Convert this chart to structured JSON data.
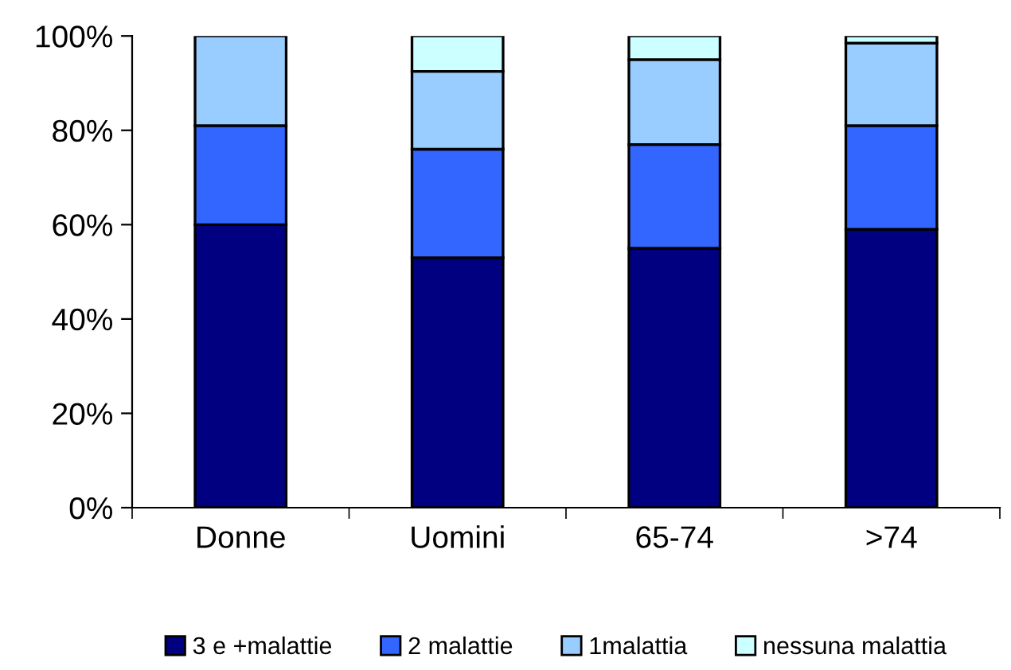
{
  "chart_data": {
    "type": "bar",
    "stacked": true,
    "categories": [
      "Donne",
      "Uomini",
      "65-74",
      ">74"
    ],
    "series": [
      {
        "name": "3 e +malattie",
        "color": "#000080",
        "values": [
          60,
          53,
          55,
          59
        ]
      },
      {
        "name": "2 malattie",
        "color": "#3366ff",
        "values": [
          21,
          23,
          22,
          22
        ]
      },
      {
        "name": "1malattia",
        "color": "#99ccff",
        "values": [
          19,
          16.5,
          18,
          17.5
        ]
      },
      {
        "name": "nessuna malattia",
        "color": "#ccffff",
        "values": [
          null,
          7.5,
          5,
          1.5
        ]
      }
    ],
    "ylim": [
      0,
      100
    ],
    "yticks": [
      {
        "value": 0,
        "label": "0%"
      },
      {
        "value": 20,
        "label": "20%"
      },
      {
        "value": 40,
        "label": "40%"
      },
      {
        "value": 60,
        "label": "60%"
      },
      {
        "value": 80,
        "label": "80%"
      },
      {
        "value": 100,
        "label": "100%"
      }
    ],
    "grid": false,
    "legend": "bottom"
  }
}
